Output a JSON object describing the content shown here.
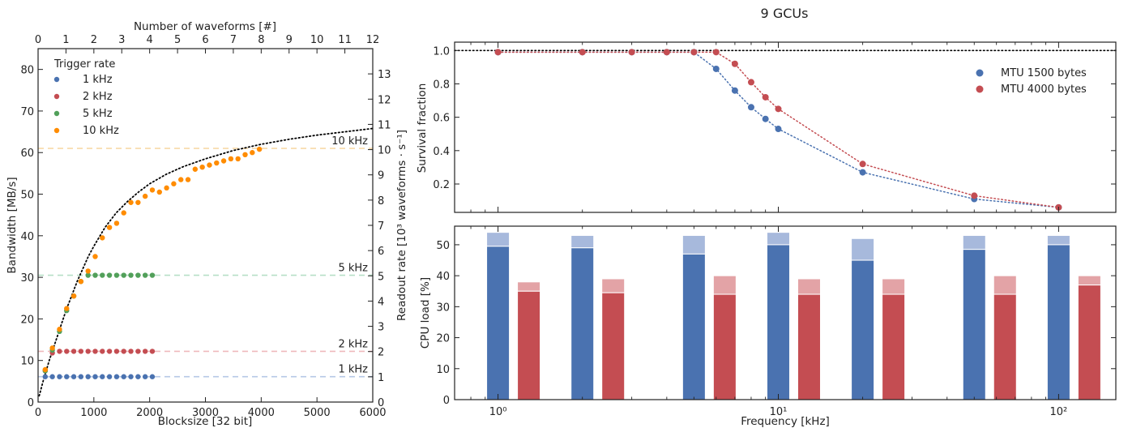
{
  "figure": {
    "title": "9 GCUs"
  },
  "colors": {
    "blue": "#4a72b0",
    "red": "#c44d52",
    "green": "#52a05a",
    "orange": "#ff8c00",
    "blue_light": "#a7b9dc",
    "red_light": "#e3a3a6",
    "blue_dash": "#b6c8e6",
    "red_dash": "#efb9bc",
    "green_dash": "#b6dfc6",
    "orange_dash": "#f7d9a8"
  },
  "chart_data": [
    {
      "type": "scatter",
      "xlabel": "Blocksize [32 bit]",
      "ylabel": "Bandwidth [MB/s]",
      "top_xlabel": "Number of waveforms [#]",
      "right_ylabel": "Readout rate [10³ waveforms · s⁻¹]",
      "xlim": [
        0,
        6000
      ],
      "ylim": [
        0,
        85
      ],
      "xticks": [
        0,
        1000,
        2000,
        3000,
        4000,
        5000,
        6000
      ],
      "yticks": [
        0,
        10,
        20,
        30,
        40,
        50,
        60,
        70,
        80
      ],
      "top_xlim": [
        0,
        12
      ],
      "top_xticks": [
        0,
        1,
        2,
        3,
        4,
        5,
        6,
        7,
        8,
        9,
        10,
        11,
        12
      ],
      "right_ylim": [
        0,
        14
      ],
      "right_yticks": [
        0,
        1,
        2,
        3,
        4,
        5,
        6,
        7,
        8,
        9,
        10,
        11,
        12,
        13
      ],
      "legend_title": "Trigger rate",
      "legend_placement": "top-left",
      "grid": false,
      "series": [
        {
          "name": "1 kHz",
          "color": "blue",
          "plateau": 6.1,
          "plateau_label": "1 kHz",
          "x": [
            128,
            256,
            384,
            512,
            640,
            768,
            896,
            1024,
            1152,
            1280,
            1408,
            1536,
            1664,
            1792,
            1920,
            2048
          ],
          "y": [
            6.1,
            6.1,
            6.1,
            6.1,
            6.1,
            6.1,
            6.1,
            6.1,
            6.1,
            6.1,
            6.1,
            6.1,
            6.1,
            6.1,
            6.1,
            6.1
          ]
        },
        {
          "name": "2 kHz",
          "color": "red",
          "plateau": 12.2,
          "plateau_label": "2 kHz",
          "x": [
            128,
            256,
            384,
            512,
            640,
            768,
            896,
            1024,
            1152,
            1280,
            1408,
            1536,
            1664,
            1792,
            1920,
            2048
          ],
          "y": [
            7.5,
            11.8,
            12.2,
            12.2,
            12.2,
            12.2,
            12.2,
            12.2,
            12.2,
            12.2,
            12.2,
            12.2,
            12.2,
            12.2,
            12.2,
            12.2
          ]
        },
        {
          "name": "5 kHz",
          "color": "green",
          "plateau": 30.5,
          "plateau_label": "5 kHz",
          "x": [
            128,
            256,
            384,
            512,
            640,
            768,
            896,
            1024,
            1152,
            1280,
            1408,
            1536,
            1664,
            1792,
            1920,
            2048
          ],
          "y": [
            7.5,
            12.5,
            17.0,
            22.0,
            25.5,
            29.0,
            30.5,
            30.5,
            30.5,
            30.5,
            30.5,
            30.5,
            30.5,
            30.5,
            30.5,
            30.5
          ]
        },
        {
          "name": "10 kHz",
          "color": "orange",
          "plateau": 61.0,
          "plateau_label": "10 kHz",
          "x": [
            128,
            256,
            384,
            512,
            640,
            768,
            896,
            1024,
            1152,
            1280,
            1408,
            1536,
            1664,
            1792,
            1920,
            2048,
            2176,
            2304,
            2432,
            2560,
            2688,
            2816,
            2944,
            3072,
            3200,
            3328,
            3456,
            3584,
            3712,
            3840,
            3968
          ],
          "y": [
            7.8,
            13.0,
            17.5,
            22.5,
            25.5,
            29.0,
            31.5,
            35.0,
            39.5,
            42.0,
            43.0,
            45.5,
            48.0,
            48.0,
            49.5,
            51.0,
            50.5,
            51.5,
            52.5,
            53.5,
            53.5,
            56.0,
            56.5,
            57.0,
            57.5,
            58.0,
            58.5,
            58.5,
            59.5,
            60.0,
            60.8
          ]
        }
      ],
      "fit_curve": {
        "style": "dotted",
        "color": "#000000",
        "x": [
          20,
          100,
          200,
          300,
          400,
          500,
          600,
          700,
          800,
          900,
          1000,
          1200,
          1400,
          1600,
          1800,
          2000,
          2300,
          2600,
          3000,
          3500,
          4000,
          4500,
          5000,
          5500,
          6000
        ],
        "y": [
          1.5,
          5.5,
          10.0,
          14.0,
          18.0,
          22.0,
          25.5,
          29.0,
          32.0,
          35.0,
          37.5,
          42.0,
          45.5,
          48.2,
          50.5,
          52.5,
          54.8,
          56.6,
          58.5,
          60.5,
          62.0,
          63.2,
          64.2,
          65.0,
          65.8
        ]
      }
    },
    {
      "type": "line",
      "title": "9 GCUs",
      "xlabel": "",
      "ylabel": "Survival fraction",
      "xscale": "log",
      "xlim": [
        0.7,
        160
      ],
      "ylim": [
        0.03,
        1.05
      ],
      "xticks": [
        1,
        10,
        100
      ],
      "xtick_labels": [
        "10⁰",
        "10¹",
        "10²"
      ],
      "yticks": [
        0.2,
        0.4,
        0.6,
        0.8,
        1.0
      ],
      "ytick_labels": [
        "0.2",
        "0.4",
        "0.6",
        "0.8",
        "1.0"
      ],
      "reference_line": 1.0,
      "legend_placement": "top-right",
      "grid": false,
      "series": [
        {
          "name": "MTU 1500 bytes",
          "color": "blue",
          "x": [
            1,
            2,
            3,
            4,
            5,
            6,
            7,
            8,
            9,
            10,
            20,
            50,
            100
          ],
          "y": [
            0.99,
            0.99,
            0.99,
            0.99,
            0.99,
            0.89,
            0.76,
            0.66,
            0.59,
            0.53,
            0.27,
            0.11,
            0.06
          ]
        },
        {
          "name": "MTU 4000 bytes",
          "color": "red",
          "x": [
            1,
            2,
            3,
            4,
            5,
            6,
            7,
            8,
            9,
            10,
            20,
            50,
            100
          ],
          "y": [
            0.99,
            0.99,
            0.99,
            0.99,
            0.99,
            0.99,
            0.92,
            0.81,
            0.72,
            0.65,
            0.32,
            0.13,
            0.06
          ]
        }
      ]
    },
    {
      "type": "bar",
      "xlabel": "Frequency [kHz]",
      "ylabel": "CPU load [%]",
      "xscale": "log",
      "xlim": [
        0.7,
        160
      ],
      "ylim": [
        0,
        56
      ],
      "xticks": [
        1,
        10,
        100
      ],
      "xtick_labels": [
        "10⁰",
        "10¹",
        "10²"
      ],
      "yticks": [
        0,
        10,
        20,
        30,
        40,
        50
      ],
      "grid": false,
      "categories": [
        1,
        2,
        5,
        10,
        20,
        50,
        100
      ],
      "series": [
        {
          "name": "MTU 1500 bytes",
          "color": "blue",
          "light_color": "blue_light",
          "values": [
            49.5,
            49.0,
            47.0,
            50.0,
            45.0,
            48.5,
            50.0
          ],
          "peak": [
            54.0,
            53.0,
            53.0,
            54.0,
            52.0,
            53.0,
            53.0
          ]
        },
        {
          "name": "MTU 4000 bytes",
          "color": "red",
          "light_color": "red_light",
          "values": [
            35.0,
            34.5,
            34.0,
            34.0,
            34.0,
            34.0,
            37.0
          ],
          "peak": [
            38.0,
            39.0,
            40.0,
            39.0,
            39.0,
            40.0,
            40.0
          ]
        }
      ]
    }
  ]
}
